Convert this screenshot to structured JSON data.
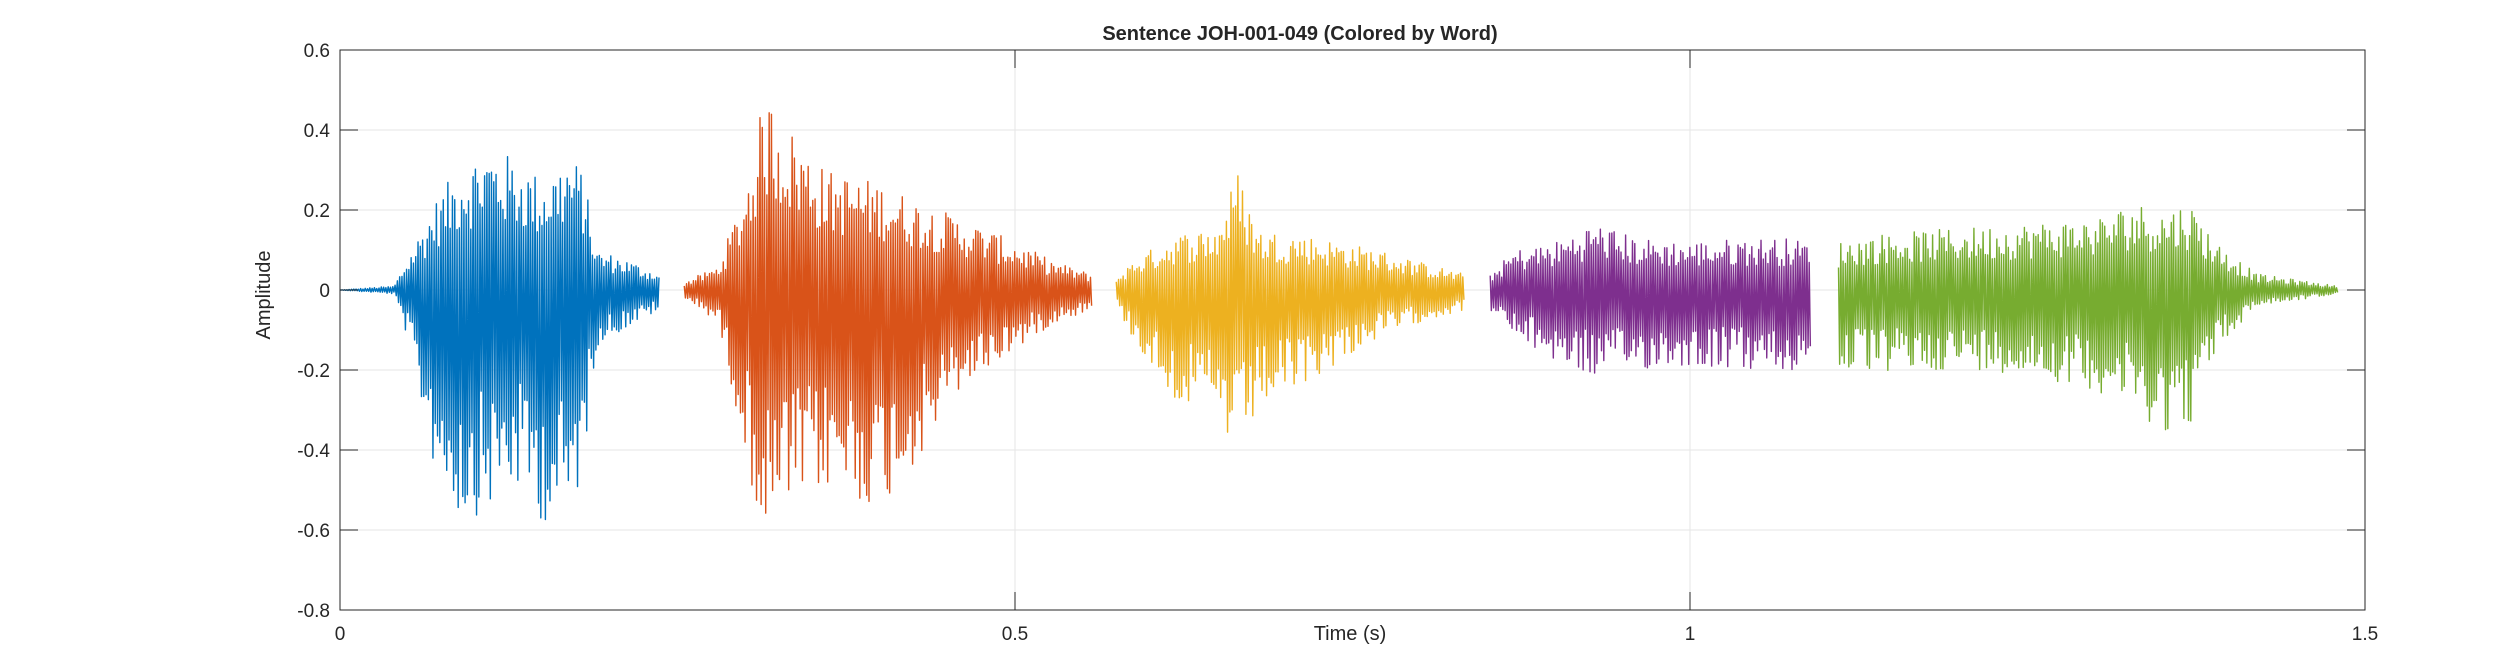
{
  "chart_data": {
    "type": "line",
    "title": "Sentence JOH-001-049 (Colored by Word)",
    "xlabel": "Time (s)",
    "ylabel": "Amplitude",
    "xlim": [
      0,
      1.5
    ],
    "ylim": [
      -0.8,
      0.6
    ],
    "xticks": [
      0,
      0.5,
      1,
      1.5
    ],
    "xtick_labels": [
      "0",
      "0.5",
      "1",
      "1.5"
    ],
    "yticks": [
      0.6,
      0.4,
      0.2,
      0,
      -0.2,
      -0.4,
      -0.6,
      -0.8
    ],
    "ytick_labels": [
      "0.6",
      "0.4",
      "0.2",
      "0",
      "-0.2",
      "-0.4",
      "-0.6",
      "-0.8"
    ],
    "grid": true,
    "legend": "none",
    "series": [
      {
        "color": "#0072BD",
        "t_start": 0.0,
        "t_end": 0.237,
        "envelope": [
          [
            0.0,
            0.0
          ],
          [
            0.04,
            0.01
          ],
          [
            0.05,
            0.08
          ],
          [
            0.07,
            0.22
          ],
          [
            0.09,
            0.32
          ],
          [
            0.11,
            0.36
          ],
          [
            0.13,
            0.33
          ],
          [
            0.15,
            0.28
          ],
          [
            0.17,
            0.34
          ],
          [
            0.18,
            0.3
          ],
          [
            0.19,
            0.1
          ],
          [
            0.21,
            0.08
          ],
          [
            0.237,
            0.04
          ]
        ],
        "neg_envelope": [
          [
            0.0,
            0.0
          ],
          [
            0.04,
            -0.01
          ],
          [
            0.05,
            -0.12
          ],
          [
            0.07,
            -0.45
          ],
          [
            0.09,
            -0.58
          ],
          [
            0.11,
            -0.55
          ],
          [
            0.13,
            -0.5
          ],
          [
            0.15,
            -0.58
          ],
          [
            0.17,
            -0.6
          ],
          [
            0.18,
            -0.45
          ],
          [
            0.19,
            -0.14
          ],
          [
            0.21,
            -0.1
          ],
          [
            0.237,
            -0.05
          ]
        ]
      },
      {
        "color": "#D95319",
        "t_start": 0.255,
        "t_end": 0.557,
        "envelope": [
          [
            0.255,
            0.02
          ],
          [
            0.28,
            0.06
          ],
          [
            0.3,
            0.25
          ],
          [
            0.315,
            0.5
          ],
          [
            0.33,
            0.42
          ],
          [
            0.36,
            0.3
          ],
          [
            0.4,
            0.27
          ],
          [
            0.43,
            0.22
          ],
          [
            0.46,
            0.18
          ],
          [
            0.5,
            0.12
          ],
          [
            0.53,
            0.07
          ],
          [
            0.557,
            0.04
          ]
        ],
        "neg_envelope": [
          [
            0.255,
            -0.02
          ],
          [
            0.28,
            -0.08
          ],
          [
            0.3,
            -0.4
          ],
          [
            0.315,
            -0.66
          ],
          [
            0.33,
            -0.55
          ],
          [
            0.36,
            -0.5
          ],
          [
            0.4,
            -0.55
          ],
          [
            0.43,
            -0.42
          ],
          [
            0.46,
            -0.25
          ],
          [
            0.5,
            -0.15
          ],
          [
            0.53,
            -0.08
          ],
          [
            0.557,
            -0.05
          ]
        ]
      },
      {
        "color": "#EDB120",
        "t_start": 0.575,
        "t_end": 0.833,
        "envelope": [
          [
            0.575,
            0.03
          ],
          [
            0.59,
            0.08
          ],
          [
            0.62,
            0.14
          ],
          [
            0.65,
            0.16
          ],
          [
            0.665,
            0.3
          ],
          [
            0.68,
            0.15
          ],
          [
            0.71,
            0.14
          ],
          [
            0.74,
            0.12
          ],
          [
            0.77,
            0.1
          ],
          [
            0.8,
            0.07
          ],
          [
            0.833,
            0.04
          ]
        ],
        "neg_envelope": [
          [
            0.575,
            -0.04
          ],
          [
            0.59,
            -0.14
          ],
          [
            0.62,
            -0.28
          ],
          [
            0.65,
            -0.33
          ],
          [
            0.665,
            -0.43
          ],
          [
            0.68,
            -0.3
          ],
          [
            0.71,
            -0.25
          ],
          [
            0.74,
            -0.18
          ],
          [
            0.77,
            -0.12
          ],
          [
            0.8,
            -0.08
          ],
          [
            0.833,
            -0.05
          ]
        ]
      },
      {
        "color": "#7E2F8E",
        "t_start": 0.852,
        "t_end": 1.09,
        "envelope": [
          [
            0.852,
            0.04
          ],
          [
            0.87,
            0.1
          ],
          [
            0.9,
            0.12
          ],
          [
            0.93,
            0.17
          ],
          [
            0.96,
            0.13
          ],
          [
            1.0,
            0.12
          ],
          [
            1.04,
            0.13
          ],
          [
            1.07,
            0.13
          ],
          [
            1.09,
            0.12
          ]
        ],
        "neg_envelope": [
          [
            0.852,
            -0.05
          ],
          [
            0.87,
            -0.12
          ],
          [
            0.9,
            -0.18
          ],
          [
            0.93,
            -0.22
          ],
          [
            0.96,
            -0.2
          ],
          [
            1.0,
            -0.19
          ],
          [
            1.04,
            -0.2
          ],
          [
            1.07,
            -0.21
          ],
          [
            1.09,
            -0.2
          ]
        ]
      },
      {
        "color": "#77AC30",
        "t_start": 1.11,
        "t_end": 1.48,
        "envelope": [
          [
            1.11,
            0.12
          ],
          [
            1.14,
            0.14
          ],
          [
            1.18,
            0.15
          ],
          [
            1.22,
            0.16
          ],
          [
            1.26,
            0.17
          ],
          [
            1.3,
            0.18
          ],
          [
            1.33,
            0.22
          ],
          [
            1.35,
            0.2
          ],
          [
            1.37,
            0.22
          ],
          [
            1.39,
            0.12
          ],
          [
            1.42,
            0.04
          ],
          [
            1.48,
            0.01
          ]
        ],
        "neg_envelope": [
          [
            1.11,
            -0.2
          ],
          [
            1.14,
            -0.21
          ],
          [
            1.18,
            -0.2
          ],
          [
            1.22,
            -0.2
          ],
          [
            1.26,
            -0.22
          ],
          [
            1.3,
            -0.25
          ],
          [
            1.33,
            -0.3
          ],
          [
            1.35,
            -0.36
          ],
          [
            1.37,
            -0.34
          ],
          [
            1.39,
            -0.15
          ],
          [
            1.42,
            -0.04
          ],
          [
            1.48,
            -0.01
          ]
        ]
      }
    ]
  }
}
